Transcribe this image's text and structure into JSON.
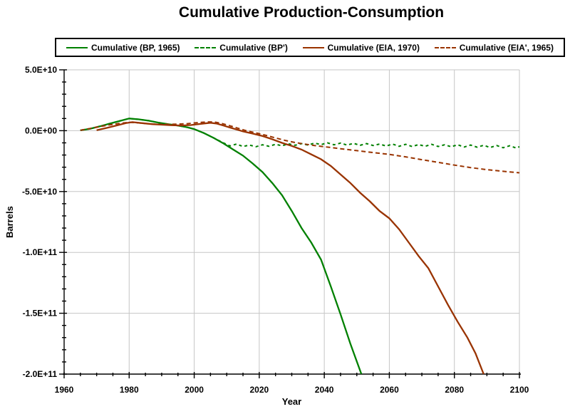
{
  "chart_data": {
    "type": "line",
    "title": "Cumulative Production-Consumption",
    "xlabel": "Year",
    "ylabel": "Barrels",
    "xlim": [
      1960,
      2100
    ],
    "ylim": [
      -200000000000.0,
      50000000000.0
    ],
    "grid": true,
    "legend_position": "top",
    "background": "#FFFFFF",
    "grid_color": "#C6C6C6",
    "axis_color": "#000000",
    "x_ticks": [
      {
        "label": "1960",
        "value": 1960
      },
      {
        "label": "1980",
        "value": 1980
      },
      {
        "label": "2000",
        "value": 2000
      },
      {
        "label": "2020",
        "value": 2020
      },
      {
        "label": "2040",
        "value": 2040
      },
      {
        "label": "2060",
        "value": 2060
      },
      {
        "label": "2080",
        "value": 2080
      },
      {
        "label": "2100",
        "value": 2100
      }
    ],
    "y_ticks": [
      {
        "label": "5.0E+10",
        "value": 50000000000.0
      },
      {
        "label": "0.0E+00",
        "value": 0
      },
      {
        "label": "-5.0E+10",
        "value": -50000000000.0
      },
      {
        "label": "-1.0E+11",
        "value": -100000000000.0
      },
      {
        "label": "-1.5E+11",
        "value": -150000000000.0
      },
      {
        "label": "-2.0E+11",
        "value": -200000000000.0
      }
    ],
    "x_minor_step": 5,
    "y_minor_step": 10000000000.0,
    "series": [
      {
        "name": "Cumulative (BP, 1965)",
        "color": "#008000",
        "style": "solid",
        "points": [
          [
            1965,
            300000000.0
          ],
          [
            1968,
            1600000000.0
          ],
          [
            1971,
            3600000000.0
          ],
          [
            1974,
            5800000000.0
          ],
          [
            1977,
            7900000000.0
          ],
          [
            1980,
            10000000000.0
          ],
          [
            1983,
            9300000000.0
          ],
          [
            1986,
            8200000000.0
          ],
          [
            1989,
            6600000000.0
          ],
          [
            1992,
            5300000000.0
          ],
          [
            1995,
            4200000000.0
          ],
          [
            1998,
            2700000000.0
          ],
          [
            2000,
            1300000000.0
          ],
          [
            2003,
            -2000000000.0
          ],
          [
            2006,
            -6000000000.0
          ],
          [
            2009,
            -10500000000.0
          ],
          [
            2012,
            -15500000000.0
          ],
          [
            2015,
            -20500000000.0
          ],
          [
            2018,
            -27000000000.0
          ],
          [
            2021,
            -34000000000.0
          ],
          [
            2024,
            -43000000000.0
          ],
          [
            2027,
            -53000000000.0
          ],
          [
            2030,
            -66000000000.0
          ],
          [
            2033,
            -80000000000.0
          ],
          [
            2036,
            -92000000000.0
          ],
          [
            2039,
            -106000000000.0
          ],
          [
            2042,
            -128000000000.0
          ],
          [
            2045,
            -151000000000.0
          ],
          [
            2048,
            -175000000000.0
          ],
          [
            2051.4,
            -200000000000.0
          ]
        ]
      },
      {
        "name": "Cumulative (BP')",
        "color": "#008000",
        "style": "dashed",
        "points": [
          [
            1965,
            300000000.0
          ],
          [
            1968,
            1600000000.0
          ],
          [
            1971,
            3600000000.0
          ],
          [
            1974,
            5800000000.0
          ],
          [
            1977,
            7900000000.0
          ],
          [
            1980,
            10000000000.0
          ],
          [
            1983,
            9300000000.0
          ],
          [
            1986,
            8200000000.0
          ],
          [
            1989,
            6600000000.0
          ],
          [
            1992,
            5300000000.0
          ],
          [
            1995,
            4200000000.0
          ],
          [
            1998,
            2700000000.0
          ],
          [
            2000,
            1300000000.0
          ],
          [
            2003,
            -2000000000.0
          ],
          [
            2006,
            -6000000000.0
          ],
          [
            2009,
            -10000000000.0
          ],
          [
            2011,
            -12500000000.0
          ],
          [
            2013,
            -11000000000.0
          ],
          [
            2015,
            -13000000000.0
          ],
          [
            2017,
            -11800000000.0
          ],
          [
            2019,
            -13200000000.0
          ],
          [
            2021,
            -11600000000.0
          ],
          [
            2023,
            -12800000000.0
          ],
          [
            2025,
            -11200000000.0
          ],
          [
            2027,
            -12400000000.0
          ],
          [
            2029,
            -10800000000.0
          ],
          [
            2031,
            -12000000000.0
          ],
          [
            2033,
            -10600000000.0
          ],
          [
            2035,
            -11800000000.0
          ],
          [
            2037,
            -10200000000.0
          ],
          [
            2039,
            -11400000000.0
          ],
          [
            2041,
            -10000000000.0
          ],
          [
            2043,
            -11600000000.0
          ],
          [
            2045,
            -10200000000.0
          ],
          [
            2047,
            -11800000000.0
          ],
          [
            2049,
            -10400000000.0
          ],
          [
            2051,
            -12000000000.0
          ],
          [
            2053,
            -10600000000.0
          ],
          [
            2055,
            -12200000000.0
          ],
          [
            2057,
            -11000000000.0
          ],
          [
            2059,
            -12600000000.0
          ],
          [
            2061,
            -11000000000.0
          ],
          [
            2063,
            -12800000000.0
          ],
          [
            2065,
            -11200000000.0
          ],
          [
            2067,
            -13000000000.0
          ],
          [
            2069,
            -11400000000.0
          ],
          [
            2071,
            -12800000000.0
          ],
          [
            2073,
            -11200000000.0
          ],
          [
            2075,
            -13000000000.0
          ],
          [
            2077,
            -11600000000.0
          ],
          [
            2079,
            -13200000000.0
          ],
          [
            2081,
            -11600000000.0
          ],
          [
            2083,
            -13400000000.0
          ],
          [
            2085,
            -11800000000.0
          ],
          [
            2087,
            -13600000000.0
          ],
          [
            2089,
            -12000000000.0
          ],
          [
            2091,
            -13800000000.0
          ],
          [
            2093,
            -12200000000.0
          ],
          [
            2095,
            -14000000000.0
          ],
          [
            2097,
            -12400000000.0
          ],
          [
            2099,
            -14200000000.0
          ],
          [
            2100,
            -13200000000.0
          ]
        ]
      },
      {
        "name": "Cumulative (EIA, 1970)",
        "color": "#993300",
        "style": "solid",
        "points": [
          [
            1970,
            400000000.0
          ],
          [
            1973,
            2200000000.0
          ],
          [
            1976,
            4200000000.0
          ],
          [
            1979,
            6200000000.0
          ],
          [
            1981,
            7000000000.0
          ],
          [
            1984,
            6200000000.0
          ],
          [
            1987,
            5400000000.0
          ],
          [
            1990,
            4900000000.0
          ],
          [
            1993,
            4500000000.0
          ],
          [
            1996,
            4300000000.0
          ],
          [
            1999,
            4600000000.0
          ],
          [
            2002,
            5600000000.0
          ],
          [
            2005,
            6500000000.0
          ],
          [
            2007,
            5800000000.0
          ],
          [
            2009,
            4200000000.0
          ],
          [
            2011,
            2600000000.0
          ],
          [
            2013,
            1000000000.0
          ],
          [
            2015,
            -600000000.0
          ],
          [
            2018,
            -2400000000.0
          ],
          [
            2021,
            -4400000000.0
          ],
          [
            2024,
            -7000000000.0
          ],
          [
            2027,
            -10000000000.0
          ],
          [
            2030,
            -12500000000.0
          ],
          [
            2033,
            -15500000000.0
          ],
          [
            2036,
            -19500000000.0
          ],
          [
            2039,
            -23500000000.0
          ],
          [
            2042,
            -29000000000.0
          ],
          [
            2045,
            -36000000000.0
          ],
          [
            2048,
            -43000000000.0
          ],
          [
            2051,
            -51000000000.0
          ],
          [
            2054,
            -58000000000.0
          ],
          [
            2057,
            -66000000000.0
          ],
          [
            2060,
            -72000000000.0
          ],
          [
            2063,
            -81000000000.0
          ],
          [
            2066,
            -92000000000.0
          ],
          [
            2069,
            -103000000000.0
          ],
          [
            2072,
            -113000000000.0
          ],
          [
            2075,
            -128000000000.0
          ],
          [
            2078,
            -143000000000.0
          ],
          [
            2081,
            -157000000000.0
          ],
          [
            2084,
            -170000000000.0
          ],
          [
            2086.5,
            -183000000000.0
          ],
          [
            2089,
            -200000000000.0
          ]
        ]
      },
      {
        "name": "Cumulative (EIA', 1965)",
        "color": "#993300",
        "style": "dashed",
        "points": [
          [
            1965,
            300000000.0
          ],
          [
            1968,
            1800000000.0
          ],
          [
            1971,
            3400000000.0
          ],
          [
            1974,
            4800000000.0
          ],
          [
            1977,
            6000000000.0
          ],
          [
            1980,
            6900000000.0
          ],
          [
            1983,
            6400000000.0
          ],
          [
            1986,
            5700000000.0
          ],
          [
            1989,
            5200000000.0
          ],
          [
            1992,
            5200000000.0
          ],
          [
            1995,
            5400000000.0
          ],
          [
            1998,
            5800000000.0
          ],
          [
            2001,
            6600000000.0
          ],
          [
            2004,
            7200000000.0
          ],
          [
            2006,
            7200000000.0
          ],
          [
            2008,
            6200000000.0
          ],
          [
            2010,
            4800000000.0
          ],
          [
            2012,
            3200000000.0
          ],
          [
            2014,
            1600000000.0
          ],
          [
            2016,
            0
          ],
          [
            2019,
            -1800000000.0
          ],
          [
            2022,
            -3800000000.0
          ],
          [
            2025,
            -6000000000.0
          ],
          [
            2028,
            -8000000000.0
          ],
          [
            2031,
            -9700000000.0
          ],
          [
            2034,
            -11000000000.0
          ],
          [
            2037,
            -12200000000.0
          ],
          [
            2040,
            -13200000000.0
          ],
          [
            2045,
            -14800000000.0
          ],
          [
            2050,
            -16400000000.0
          ],
          [
            2055,
            -18000000000.0
          ],
          [
            2060,
            -19500000000.0
          ],
          [
            2065,
            -21500000000.0
          ],
          [
            2070,
            -23800000000.0
          ],
          [
            2075,
            -26000000000.0
          ],
          [
            2080,
            -28300000000.0
          ],
          [
            2085,
            -30300000000.0
          ],
          [
            2090,
            -32000000000.0
          ],
          [
            2095,
            -33400000000.0
          ],
          [
            2100,
            -34600000000.0
          ]
        ]
      }
    ]
  }
}
